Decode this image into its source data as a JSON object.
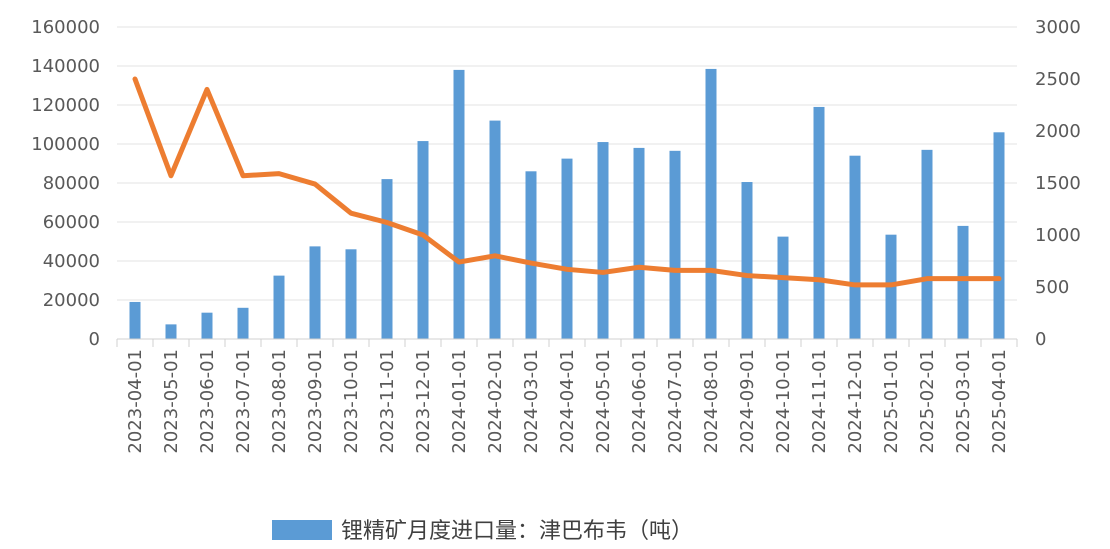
{
  "chart_data": {
    "type": "bar",
    "categories": [
      "2023-04-01",
      "2023-05-01",
      "2023-06-01",
      "2023-07-01",
      "2023-08-01",
      "2023-09-01",
      "2023-10-01",
      "2023-11-01",
      "2023-12-01",
      "2024-01-01",
      "2024-02-01",
      "2024-03-01",
      "2024-04-01",
      "2024-05-01",
      "2024-06-01",
      "2024-07-01",
      "2024-08-01",
      "2024-09-01",
      "2024-10-01",
      "2024-11-01",
      "2024-12-01",
      "2025-01-01",
      "2025-02-01",
      "2025-03-01",
      "2025-04-01"
    ],
    "series": [
      {
        "name": "锂精矿月度进口量：津巴布韦（吨）",
        "kind": "bar",
        "axis": "left",
        "color": "#5B9BD5",
        "values": [
          19000,
          7500,
          13500,
          16000,
          32500,
          47500,
          46000,
          82000,
          101500,
          138000,
          112000,
          86000,
          92500,
          101000,
          98000,
          96500,
          138500,
          80500,
          52500,
          119000,
          94000,
          53500,
          97000,
          58000,
          106000
        ]
      },
      {
        "kind": "line",
        "axis": "right",
        "color": "#ED7D31",
        "values": [
          2500,
          1570,
          2400,
          1570,
          1590,
          1490,
          1210,
          1120,
          1000,
          740,
          800,
          730,
          670,
          640,
          690,
          660,
          660,
          610,
          590,
          570,
          520,
          520,
          580,
          580,
          580
        ]
      }
    ],
    "y_left": {
      "min": 0,
      "max": 160000,
      "ticks": [
        "0",
        "20000",
        "40000",
        "60000",
        "80000",
        "100000",
        "120000",
        "140000",
        "160000"
      ]
    },
    "y_right": {
      "min": 0,
      "max": 3000,
      "ticks": [
        "0",
        "500",
        "1000",
        "1500",
        "2000",
        "2500",
        "3000"
      ]
    },
    "grid": true,
    "legend": {
      "position": "bottom",
      "label": "锂精矿月度进口量：津巴布韦（吨）"
    },
    "title": "",
    "xlabel": "",
    "ylabel": ""
  }
}
